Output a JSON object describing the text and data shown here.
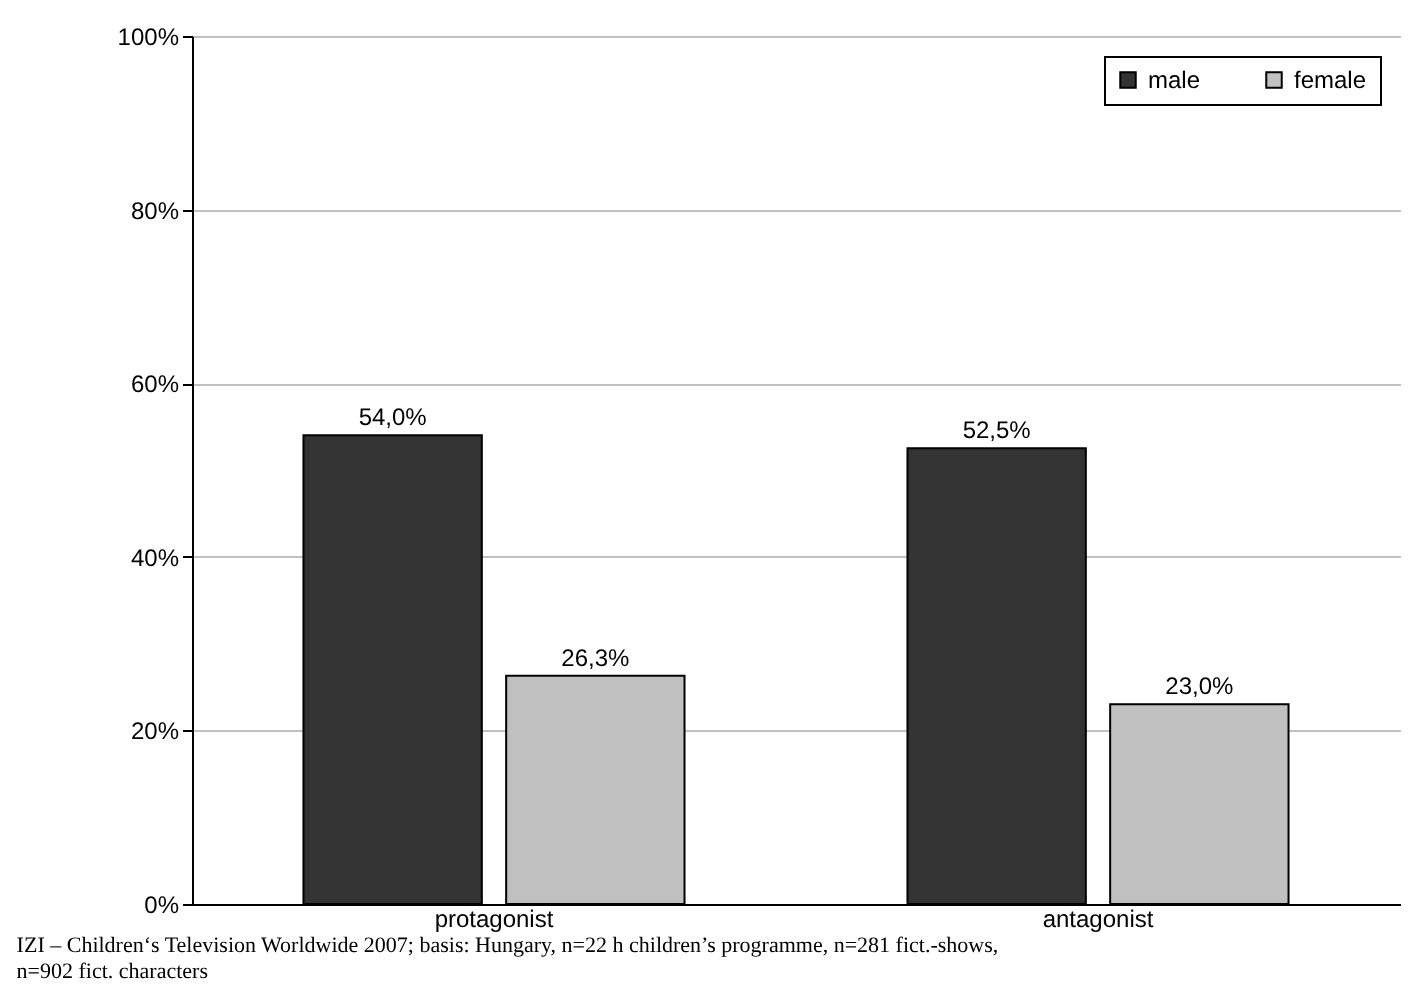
{
  "chart_data": {
    "type": "bar",
    "categories": [
      "protagonist",
      "antagonist"
    ],
    "series": [
      {
        "name": "male",
        "color": "#333333",
        "values": [
          54.0,
          52.5
        ],
        "value_labels": [
          "54,0%",
          "52,5%"
        ]
      },
      {
        "name": "female",
        "color": "#c0c0c0",
        "values": [
          26.3,
          23.0
        ],
        "value_labels": [
          "26,3%",
          "23,0%"
        ]
      }
    ],
    "ylim": [
      0,
      100
    ],
    "yticks": [
      {
        "value": 0,
        "label": "0%"
      },
      {
        "value": 20,
        "label": "20%"
      },
      {
        "value": 40,
        "label": "40%"
      },
      {
        "value": 60,
        "label": "60%"
      },
      {
        "value": 80,
        "label": "80%"
      },
      {
        "value": 100,
        "label": "100%"
      }
    ],
    "grid": "y",
    "legend": "top right",
    "annotations": [
      "IZI – Children‘s Television Worldwide 2007; basis: Hungary, n=22 h children’s programme, n=281 fict.-shows, n=902 fict. characters"
    ]
  }
}
